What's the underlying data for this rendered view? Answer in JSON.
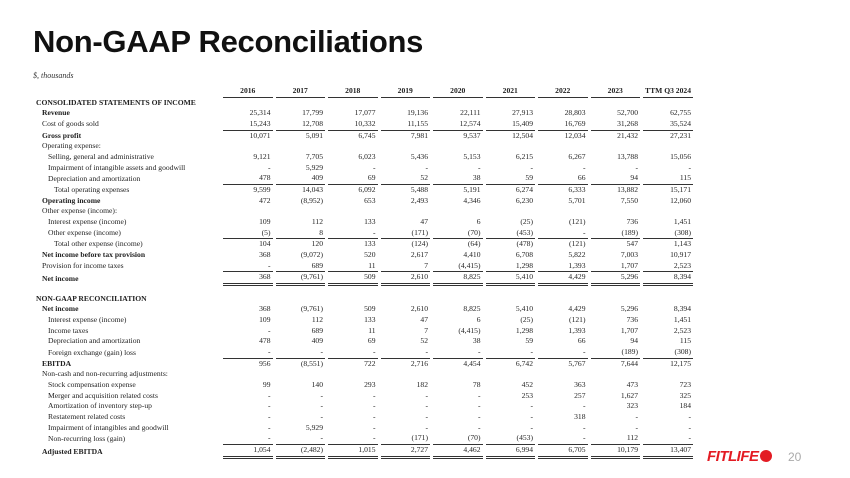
{
  "title": "Non-GAAP Reconciliations",
  "subtitle": "$, thousands",
  "columns": [
    "2016",
    "2017",
    "2018",
    "2019",
    "2020",
    "2021",
    "2022",
    "2023",
    "TTM Q3 2024"
  ],
  "rows": [
    {
      "label": "CONSOLIDATED STATEMENTS OF INCOME",
      "indent": 0,
      "bold": true,
      "values": []
    },
    {
      "label": "Revenue",
      "indent": 1,
      "bold": true,
      "values": [
        "25,314",
        "17,799",
        "17,077",
        "19,136",
        "22,111",
        "27,913",
        "28,803",
        "52,700",
        "62,755"
      ]
    },
    {
      "label": "Cost of goods sold",
      "indent": 1,
      "line": "ul",
      "values": [
        "15,243",
        "12,708",
        "10,332",
        "11,155",
        "12,574",
        "15,409",
        "16,769",
        "31,268",
        "35,524"
      ]
    },
    {
      "label": "Gross profit",
      "indent": 1,
      "bold": true,
      "values": [
        "10,071",
        "5,091",
        "6,745",
        "7,981",
        "9,537",
        "12,504",
        "12,034",
        "21,432",
        "27,231"
      ]
    },
    {
      "label": "Operating expense:",
      "indent": 1,
      "values": []
    },
    {
      "label": "Selling, general and administrative",
      "indent": 2,
      "values": [
        "9,121",
        "7,705",
        "6,023",
        "5,436",
        "5,153",
        "6,215",
        "6,267",
        "13,788",
        "15,056"
      ]
    },
    {
      "label": "Impairment of intangible assets and goodwill",
      "indent": 2,
      "values": [
        "-",
        "5,929",
        "-",
        "-",
        "-",
        "-",
        "-",
        "-",
        "-"
      ]
    },
    {
      "label": "Depreciation and amortization",
      "indent": 2,
      "line": "ul",
      "values": [
        "478",
        "409",
        "69",
        "52",
        "38",
        "59",
        "66",
        "94",
        "115"
      ]
    },
    {
      "label": "Total operating expenses",
      "indent": 3,
      "values": [
        "9,599",
        "14,043",
        "6,092",
        "5,488",
        "5,191",
        "6,274",
        "6,333",
        "13,882",
        "15,171"
      ]
    },
    {
      "label": "Operating income",
      "indent": 1,
      "bold": true,
      "values": [
        "472",
        "(8,952)",
        "653",
        "2,493",
        "4,346",
        "6,230",
        "5,701",
        "7,550",
        "12,060"
      ]
    },
    {
      "label": "Other expense (income):",
      "indent": 1,
      "values": []
    },
    {
      "label": "Interest expense (income)",
      "indent": 2,
      "values": [
        "109",
        "112",
        "133",
        "47",
        "6",
        "(25)",
        "(121)",
        "736",
        "1,451"
      ]
    },
    {
      "label": "Other expense (income)",
      "indent": 2,
      "line": "ul",
      "values": [
        "(5)",
        "8",
        "-",
        "(171)",
        "(70)",
        "(453)",
        "-",
        "(189)",
        "(308)"
      ]
    },
    {
      "label": "Total other expense (income)",
      "indent": 3,
      "values": [
        "104",
        "120",
        "133",
        "(124)",
        "(64)",
        "(478)",
        "(121)",
        "547",
        "1,143"
      ]
    },
    {
      "label": "Net income before tax provision",
      "indent": 1,
      "bold": true,
      "values": [
        "368",
        "(9,072)",
        "520",
        "2,617",
        "4,410",
        "6,708",
        "5,822",
        "7,003",
        "10,917"
      ]
    },
    {
      "label": "Provision for income taxes",
      "indent": 1,
      "line": "ul",
      "values": [
        "-",
        "689",
        "11",
        "7",
        "(4,415)",
        "1,298",
        "1,393",
        "1,707",
        "2,523"
      ]
    },
    {
      "label": "Net income",
      "indent": 1,
      "bold": true,
      "line": "dbl",
      "values": [
        "368",
        "(9,761)",
        "509",
        "2,610",
        "8,825",
        "5,410",
        "4,429",
        "5,296",
        "8,394"
      ]
    },
    {
      "spacer": true
    },
    {
      "label": "NON-GAAP RECONCILIATION",
      "indent": 0,
      "bold": true,
      "values": []
    },
    {
      "label": "Net income",
      "indent": 1,
      "bold": true,
      "values": [
        "368",
        "(9,761)",
        "509",
        "2,610",
        "8,825",
        "5,410",
        "4,429",
        "5,296",
        "8,394"
      ]
    },
    {
      "label": "Interest expense (income)",
      "indent": 2,
      "values": [
        "109",
        "112",
        "133",
        "47",
        "6",
        "(25)",
        "(121)",
        "736",
        "1,451"
      ]
    },
    {
      "label": "Income taxes",
      "indent": 2,
      "values": [
        "-",
        "689",
        "11",
        "7",
        "(4,415)",
        "1,298",
        "1,393",
        "1,707",
        "2,523"
      ]
    },
    {
      "label": "Depreciation and amortization",
      "indent": 2,
      "values": [
        "478",
        "409",
        "69",
        "52",
        "38",
        "59",
        "66",
        "94",
        "115"
      ]
    },
    {
      "label": "Foreign exchange (gain) loss",
      "indent": 2,
      "line": "ul",
      "values": [
        "-",
        "-",
        "-",
        "-",
        "-",
        "-",
        "-",
        "(189)",
        "(308)"
      ]
    },
    {
      "label": "EBITDA",
      "indent": 1,
      "bold": true,
      "values": [
        "956",
        "(8,551)",
        "722",
        "2,716",
        "4,454",
        "6,742",
        "5,767",
        "7,644",
        "12,175"
      ]
    },
    {
      "label": "Non-cash and non-recurring adjustments:",
      "indent": 1,
      "values": []
    },
    {
      "label": "Stock compensation expense",
      "indent": 2,
      "values": [
        "99",
        "140",
        "293",
        "182",
        "78",
        "452",
        "363",
        "473",
        "723"
      ]
    },
    {
      "label": "Merger and acquisition related costs",
      "indent": 2,
      "values": [
        "-",
        "-",
        "-",
        "-",
        "-",
        "253",
        "257",
        "1,627",
        "325"
      ]
    },
    {
      "label": "Amortization of inventory step-up",
      "indent": 2,
      "values": [
        "-",
        "-",
        "-",
        "-",
        "-",
        "-",
        "-",
        "323",
        "184"
      ]
    },
    {
      "label": "Restatement related costs",
      "indent": 2,
      "values": [
        "-",
        "-",
        "-",
        "-",
        "-",
        "-",
        "318",
        "-",
        "-"
      ]
    },
    {
      "label": "Impairment of intangibles and goodwill",
      "indent": 2,
      "values": [
        "-",
        "5,929",
        "-",
        "-",
        "-",
        "-",
        "-",
        "-",
        "-"
      ]
    },
    {
      "label": "Non-recurring loss (gain)",
      "indent": 2,
      "line": "ul",
      "values": [
        "-",
        "-",
        "-",
        "(171)",
        "(70)",
        "(453)",
        "-",
        "112",
        "-"
      ]
    },
    {
      "label": "Adjusted EBITDA",
      "indent": 1,
      "bold": true,
      "line": "dbl",
      "values": [
        "1,054",
        "(2,482)",
        "1,015",
        "2,727",
        "4,462",
        "6,994",
        "6,705",
        "10,179",
        "13,407"
      ]
    }
  ],
  "footer": {
    "logo_text": "FITLIFE",
    "page_number": "20",
    "brand_color": "#e31b23"
  }
}
